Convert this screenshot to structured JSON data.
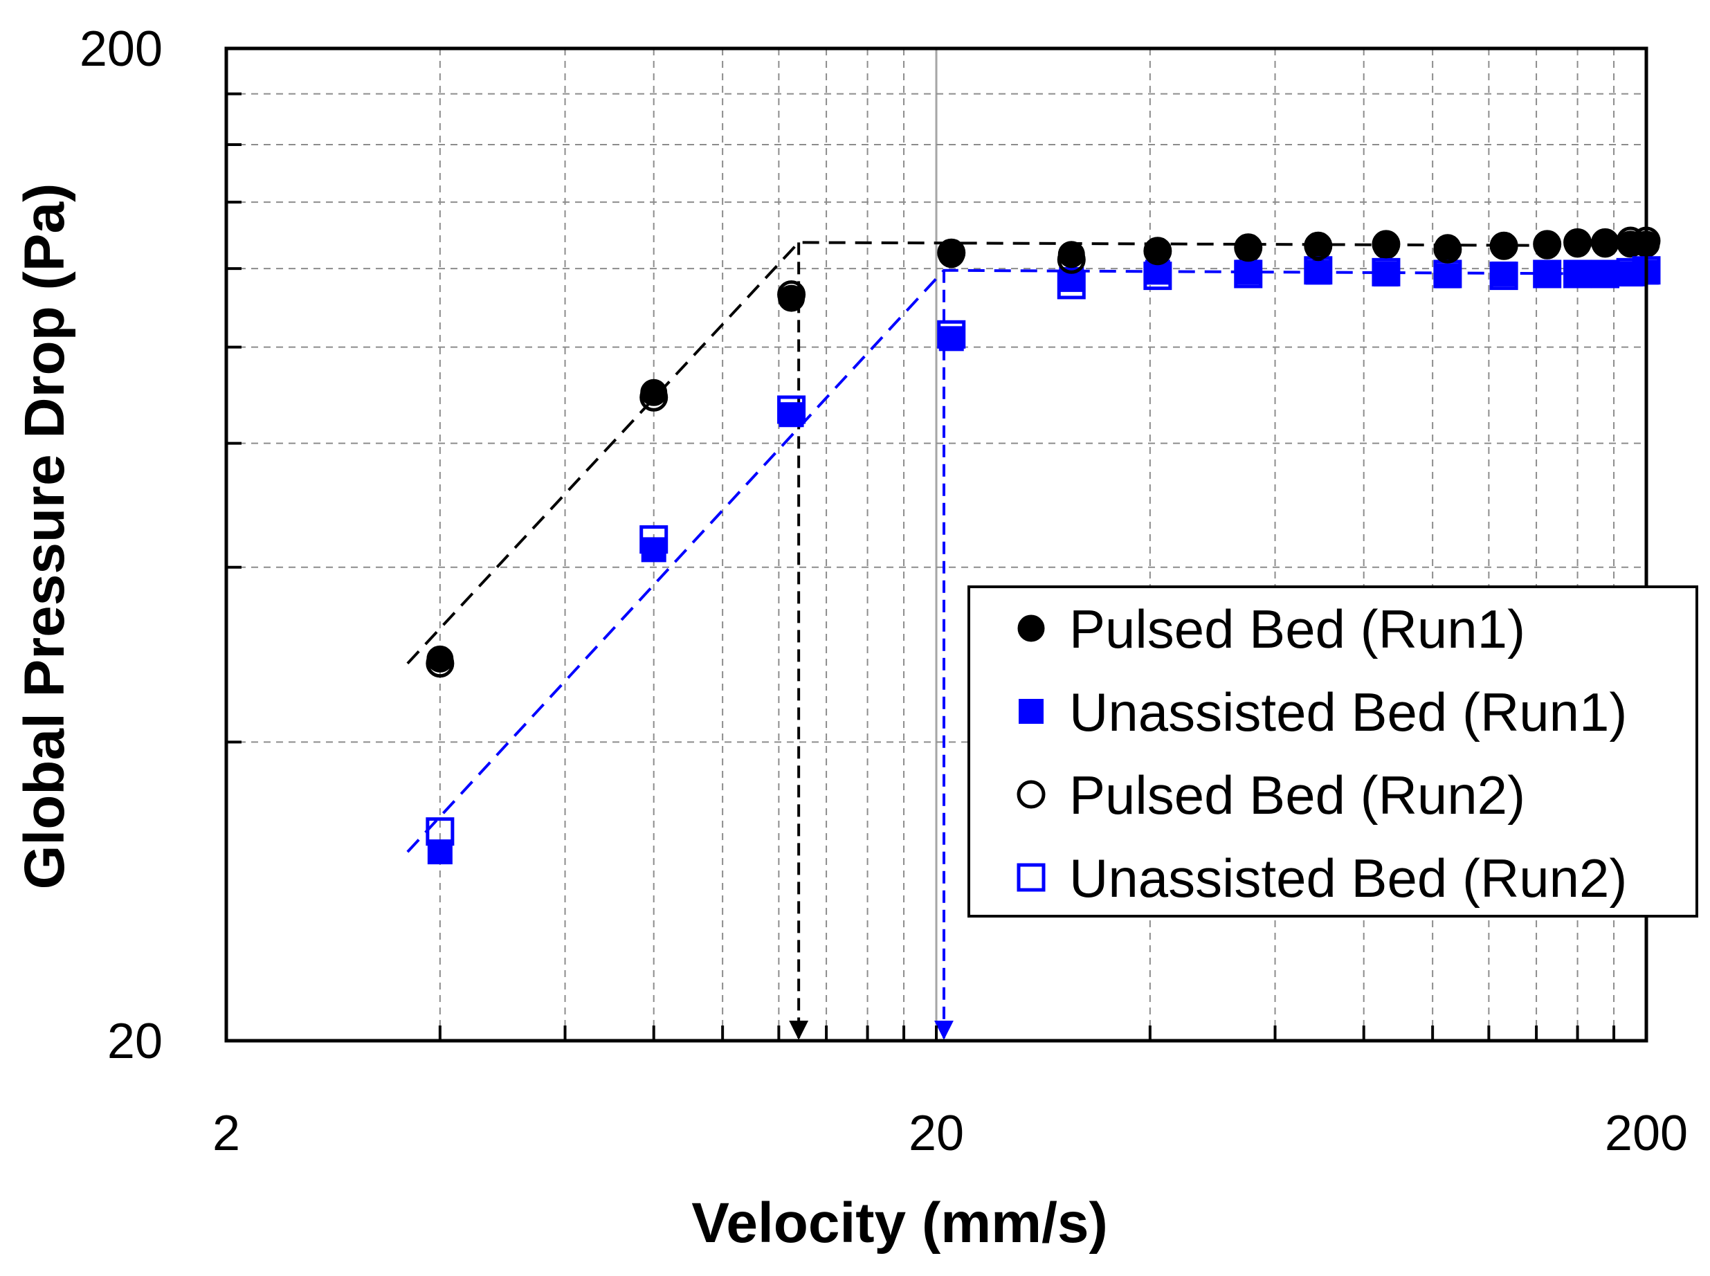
{
  "chart_data": {
    "type": "scatter",
    "title": "",
    "xlabel": "Velocity (mm/s)",
    "ylabel": "Global Pressure Drop (Pa)",
    "xscale": "log",
    "yscale": "log",
    "xlim": [
      2,
      200
    ],
    "ylim": [
      20,
      200
    ],
    "x_ticks": [
      2,
      20,
      200
    ],
    "x_tick_labels": [
      "2",
      "20",
      "200"
    ],
    "y_ticks": [
      20,
      200
    ],
    "y_tick_labels": [
      "20",
      "200"
    ],
    "grid": true,
    "legend_position": "right",
    "series": [
      {
        "name": "Pulsed Bed (Run1)",
        "marker": "circle-filled",
        "color": "#000000",
        "x": [
          4,
          8,
          12.5,
          21,
          31,
          41,
          55,
          69,
          86,
          105,
          126,
          145,
          160,
          175,
          190,
          200
        ],
        "y": [
          48.5,
          90,
          112,
          124,
          124,
          125,
          125.5,
          126,
          126.5,
          126,
          126.5,
          126.5,
          127,
          127,
          127,
          127
        ]
      },
      {
        "name": "Unassisted Bed (Run1)",
        "marker": "square-filled",
        "color": "#0000ff",
        "x": [
          4,
          8,
          12.5,
          21,
          31,
          41,
          55,
          69,
          86,
          105,
          126,
          145,
          160,
          175,
          190,
          200
        ],
        "y": [
          31,
          62.5,
          85.5,
          102,
          117,
          119,
          119,
          119,
          118.5,
          118,
          118.5,
          118.5,
          118.5,
          118.5,
          118.5,
          119
        ]
      },
      {
        "name": "Pulsed Bed (Run2)",
        "marker": "circle-open",
        "color": "#000000",
        "x": [
          4,
          8,
          12.5,
          21,
          31,
          41,
          55,
          69,
          86,
          105,
          126,
          145,
          160,
          175,
          190,
          200
        ],
        "y": [
          48,
          89,
          113,
          124.5,
          122.5,
          125,
          126,
          126.5,
          127,
          125.5,
          126.5,
          127,
          127.5,
          127.5,
          128,
          128
        ]
      },
      {
        "name": "Unassisted Bed (Run2)",
        "marker": "square-open",
        "color": "#0000ff",
        "x": [
          4,
          8,
          12.5,
          21,
          31,
          41,
          55,
          69,
          86,
          105,
          126,
          145,
          160,
          175,
          190,
          200
        ],
        "y": [
          32.5,
          64,
          86.5,
          103,
          115.5,
          118,
          118.5,
          119.5,
          119,
          118.5,
          118,
          118.5,
          118.5,
          118.5,
          119,
          119.5
        ]
      }
    ],
    "fit_lines": [
      {
        "name": "pulsed-fit",
        "color": "#000000",
        "x": [
          3.6,
          12.8,
          200
        ],
        "y": [
          48,
          127.5,
          126.5
        ]
      },
      {
        "name": "unassisted-fit",
        "color": "#0000ff",
        "x": [
          3.6,
          20.5,
          200
        ],
        "y": [
          31,
          119.5,
          118.5
        ]
      }
    ],
    "annotations": [
      {
        "name": "pulsed-transition-arrow",
        "color": "#000000",
        "x": 12.8,
        "y_from": 127.5,
        "y_to": 20
      },
      {
        "name": "unassisted-transition-arrow",
        "color": "#0000ff",
        "x": 20.5,
        "y_from": 119.5,
        "y_to": 20
      }
    ]
  }
}
